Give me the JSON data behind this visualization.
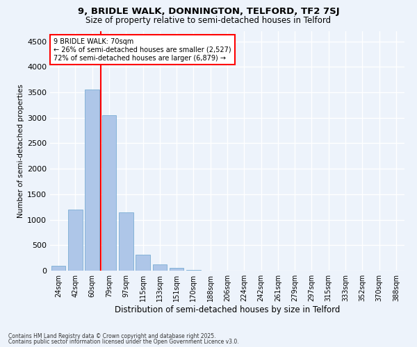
{
  "title_line1": "9, BRIDLE WALK, DONNINGTON, TELFORD, TF2 7SJ",
  "title_line2": "Size of property relative to semi-detached houses in Telford",
  "xlabel": "Distribution of semi-detached houses by size in Telford",
  "ylabel": "Number of semi-detached properties",
  "categories": [
    "24sqm",
    "42sqm",
    "60sqm",
    "79sqm",
    "97sqm",
    "115sqm",
    "133sqm",
    "151sqm",
    "170sqm",
    "188sqm",
    "206sqm",
    "224sqm",
    "242sqm",
    "261sqm",
    "279sqm",
    "297sqm",
    "315sqm",
    "333sqm",
    "352sqm",
    "370sqm",
    "388sqm"
  ],
  "values": [
    100,
    1200,
    3550,
    3050,
    1150,
    310,
    120,
    55,
    10,
    0,
    0,
    0,
    0,
    0,
    0,
    0,
    0,
    0,
    0,
    0,
    0
  ],
  "bar_color": "#aec6e8",
  "bar_edge_color": "#7aadd4",
  "vline_color": "red",
  "vline_x": 2.5,
  "annotation_title": "9 BRIDLE WALK: 70sqm",
  "annotation_line2": "← 26% of semi-detached houses are smaller (2,527)",
  "annotation_line3": "72% of semi-detached houses are larger (6,879) →",
  "ylim": [
    0,
    4700
  ],
  "yticks": [
    0,
    500,
    1000,
    1500,
    2000,
    2500,
    3000,
    3500,
    4000,
    4500
  ],
  "footer_line1": "Contains HM Land Registry data © Crown copyright and database right 2025.",
  "footer_line2": "Contains public sector information licensed under the Open Government Licence v3.0.",
  "background_color": "#edf3fb",
  "grid_color": "#ffffff"
}
